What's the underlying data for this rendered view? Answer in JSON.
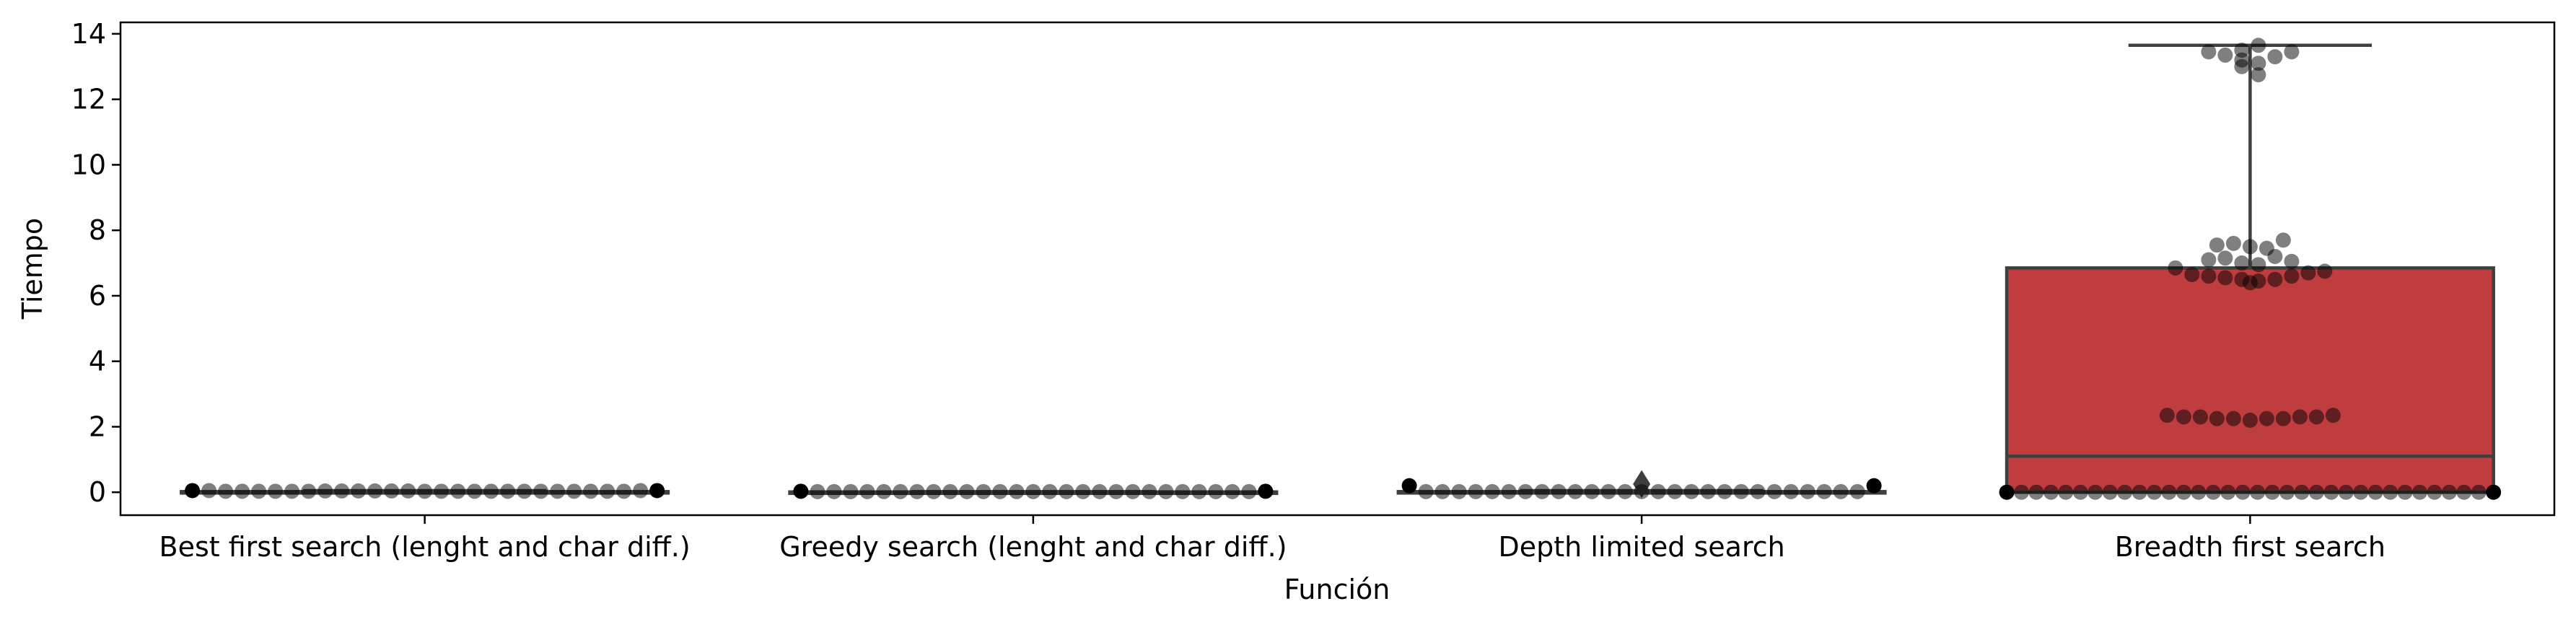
{
  "chart_data": {
    "type": "box-swarm",
    "xlabel": "Función",
    "ylabel": "Tiempo",
    "ylim": [
      -0.7,
      14.35
    ],
    "yticks": [
      0,
      2,
      4,
      6,
      8,
      10,
      12,
      14
    ],
    "grid": false,
    "legend": "none",
    "categories": [
      "Best first search (lenght and char diff.)",
      "Greedy search (lenght and char diff.)",
      "Depth limited search",
      "Breadth first search"
    ],
    "boxes": [
      {
        "q1": 0.0,
        "median": 0.01,
        "q3": 0.02,
        "whisker_low": 0.0,
        "whisker_high": 0.05,
        "fliers": [],
        "color": "#5f5f5f"
      },
      {
        "q1": 0.0,
        "median": 0.0,
        "q3": 0.01,
        "whisker_low": 0.0,
        "whisker_high": 0.02,
        "fliers": [],
        "color": "#5f5f5f"
      },
      {
        "q1": 0.0,
        "median": 0.0,
        "q3": 0.02,
        "whisker_low": 0.0,
        "whisker_high": 0.05,
        "fliers": [
          0.25
        ],
        "color": "#5f5f5f"
      },
      {
        "q1": 0.0,
        "median": 1.1,
        "q3": 6.85,
        "whisker_low": 0.0,
        "whisker_high": 13.65,
        "fliers": [],
        "color": "#bf3c3f"
      }
    ],
    "points": [
      {
        "category": 0,
        "values": [
          0.05,
          0.05,
          0.03,
          0.03,
          0.03,
          0.03,
          0.03,
          0.03,
          0.04,
          0.04,
          0.04,
          0.04,
          0.04,
          0.04,
          0.03,
          0.03,
          0.03,
          0.03,
          0.03,
          0.03,
          0.03,
          0.03,
          0.03,
          0.03,
          0.03,
          0.03,
          0.03,
          0.05,
          0.05
        ]
      },
      {
        "category": 1,
        "values": [
          0.03,
          0.02,
          0.02,
          0.02,
          0.02,
          0.02,
          0.02,
          0.02,
          0.02,
          0.02,
          0.02,
          0.02,
          0.02,
          0.02,
          0.02,
          0.02,
          0.02,
          0.02,
          0.02,
          0.02,
          0.02,
          0.02,
          0.02,
          0.02,
          0.02,
          0.02,
          0.02,
          0.02,
          0.03
        ]
      },
      {
        "category": 2,
        "values": [
          0.2,
          0.02,
          0.02,
          0.02,
          0.02,
          0.02,
          0.02,
          0.02,
          0.02,
          0.02,
          0.02,
          0.02,
          0.02,
          0.02,
          0.02,
          0.02,
          0.02,
          0.02,
          0.02,
          0.02,
          0.02,
          0.02,
          0.02,
          0.02,
          0.02,
          0.02,
          0.02,
          0.02,
          0.2
        ]
      },
      {
        "category": 3,
        "values": [
          0,
          0,
          0,
          0,
          0,
          0,
          0,
          0,
          0,
          0,
          0,
          0,
          0,
          0,
          0,
          0,
          0,
          0,
          0,
          0,
          0,
          0,
          0,
          0,
          0,
          0,
          0,
          0,
          0,
          0,
          0,
          0,
          0,
          0,
          2.35,
          2.3,
          2.3,
          2.25,
          2.25,
          2.2,
          2.25,
          2.25,
          2.3,
          2.3,
          2.35,
          6.85,
          6.65,
          6.6,
          6.55,
          6.5,
          6.4,
          6.45,
          6.5,
          6.6,
          6.7,
          6.75,
          7.1,
          7.15,
          7.0,
          6.95,
          7.2,
          7.05,
          7.55,
          7.6,
          7.5,
          7.45,
          7.7,
          13.45,
          13.35,
          13.2,
          13.0,
          12.75,
          13.1,
          13.3,
          13.5,
          13.45,
          13.65
        ]
      }
    ]
  }
}
